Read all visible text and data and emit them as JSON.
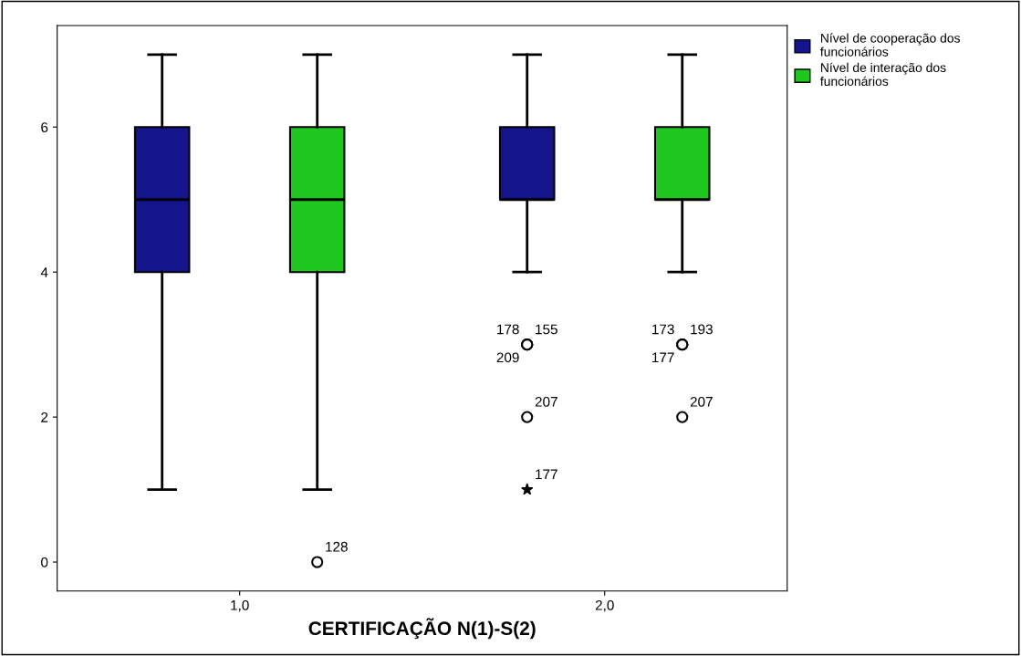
{
  "chart_data": {
    "type": "box",
    "xlabel": "CERTIFICAÇÃO N(1)-S(2)",
    "categories": [
      "1,0",
      "2,0"
    ],
    "series": [
      {
        "name": "Nível de cooperação dos funcionários",
        "color": "#14148c",
        "boxes": [
          {
            "low": 1,
            "q1": 4,
            "median": 5,
            "q3": 6,
            "high": 7
          },
          {
            "low": 4,
            "q1": 5,
            "median": 5,
            "q3": 6,
            "high": 7,
            "outliers": [
              3,
              3,
              3,
              2,
              1
            ]
          }
        ]
      },
      {
        "name": "Nível de interação dos funcionários",
        "color": "#1ec81e",
        "boxes": [
          {
            "low": 1,
            "q1": 4,
            "median": 5,
            "q3": 6,
            "high": 7,
            "outliers": [
              0
            ]
          },
          {
            "low": 4,
            "q1": 5,
            "median": 5,
            "q3": 6,
            "high": 7,
            "outliers": [
              3,
              3,
              3,
              2
            ]
          }
        ]
      }
    ],
    "annotations": [
      "178",
      "155",
      "209",
      "207",
      "177",
      "128",
      "173",
      "193",
      "177",
      "207"
    ],
    "ylim": [
      -0.4,
      7.4
    ],
    "yticks": [
      0,
      2,
      4,
      6
    ],
    "grid": false,
    "legend": "right"
  }
}
